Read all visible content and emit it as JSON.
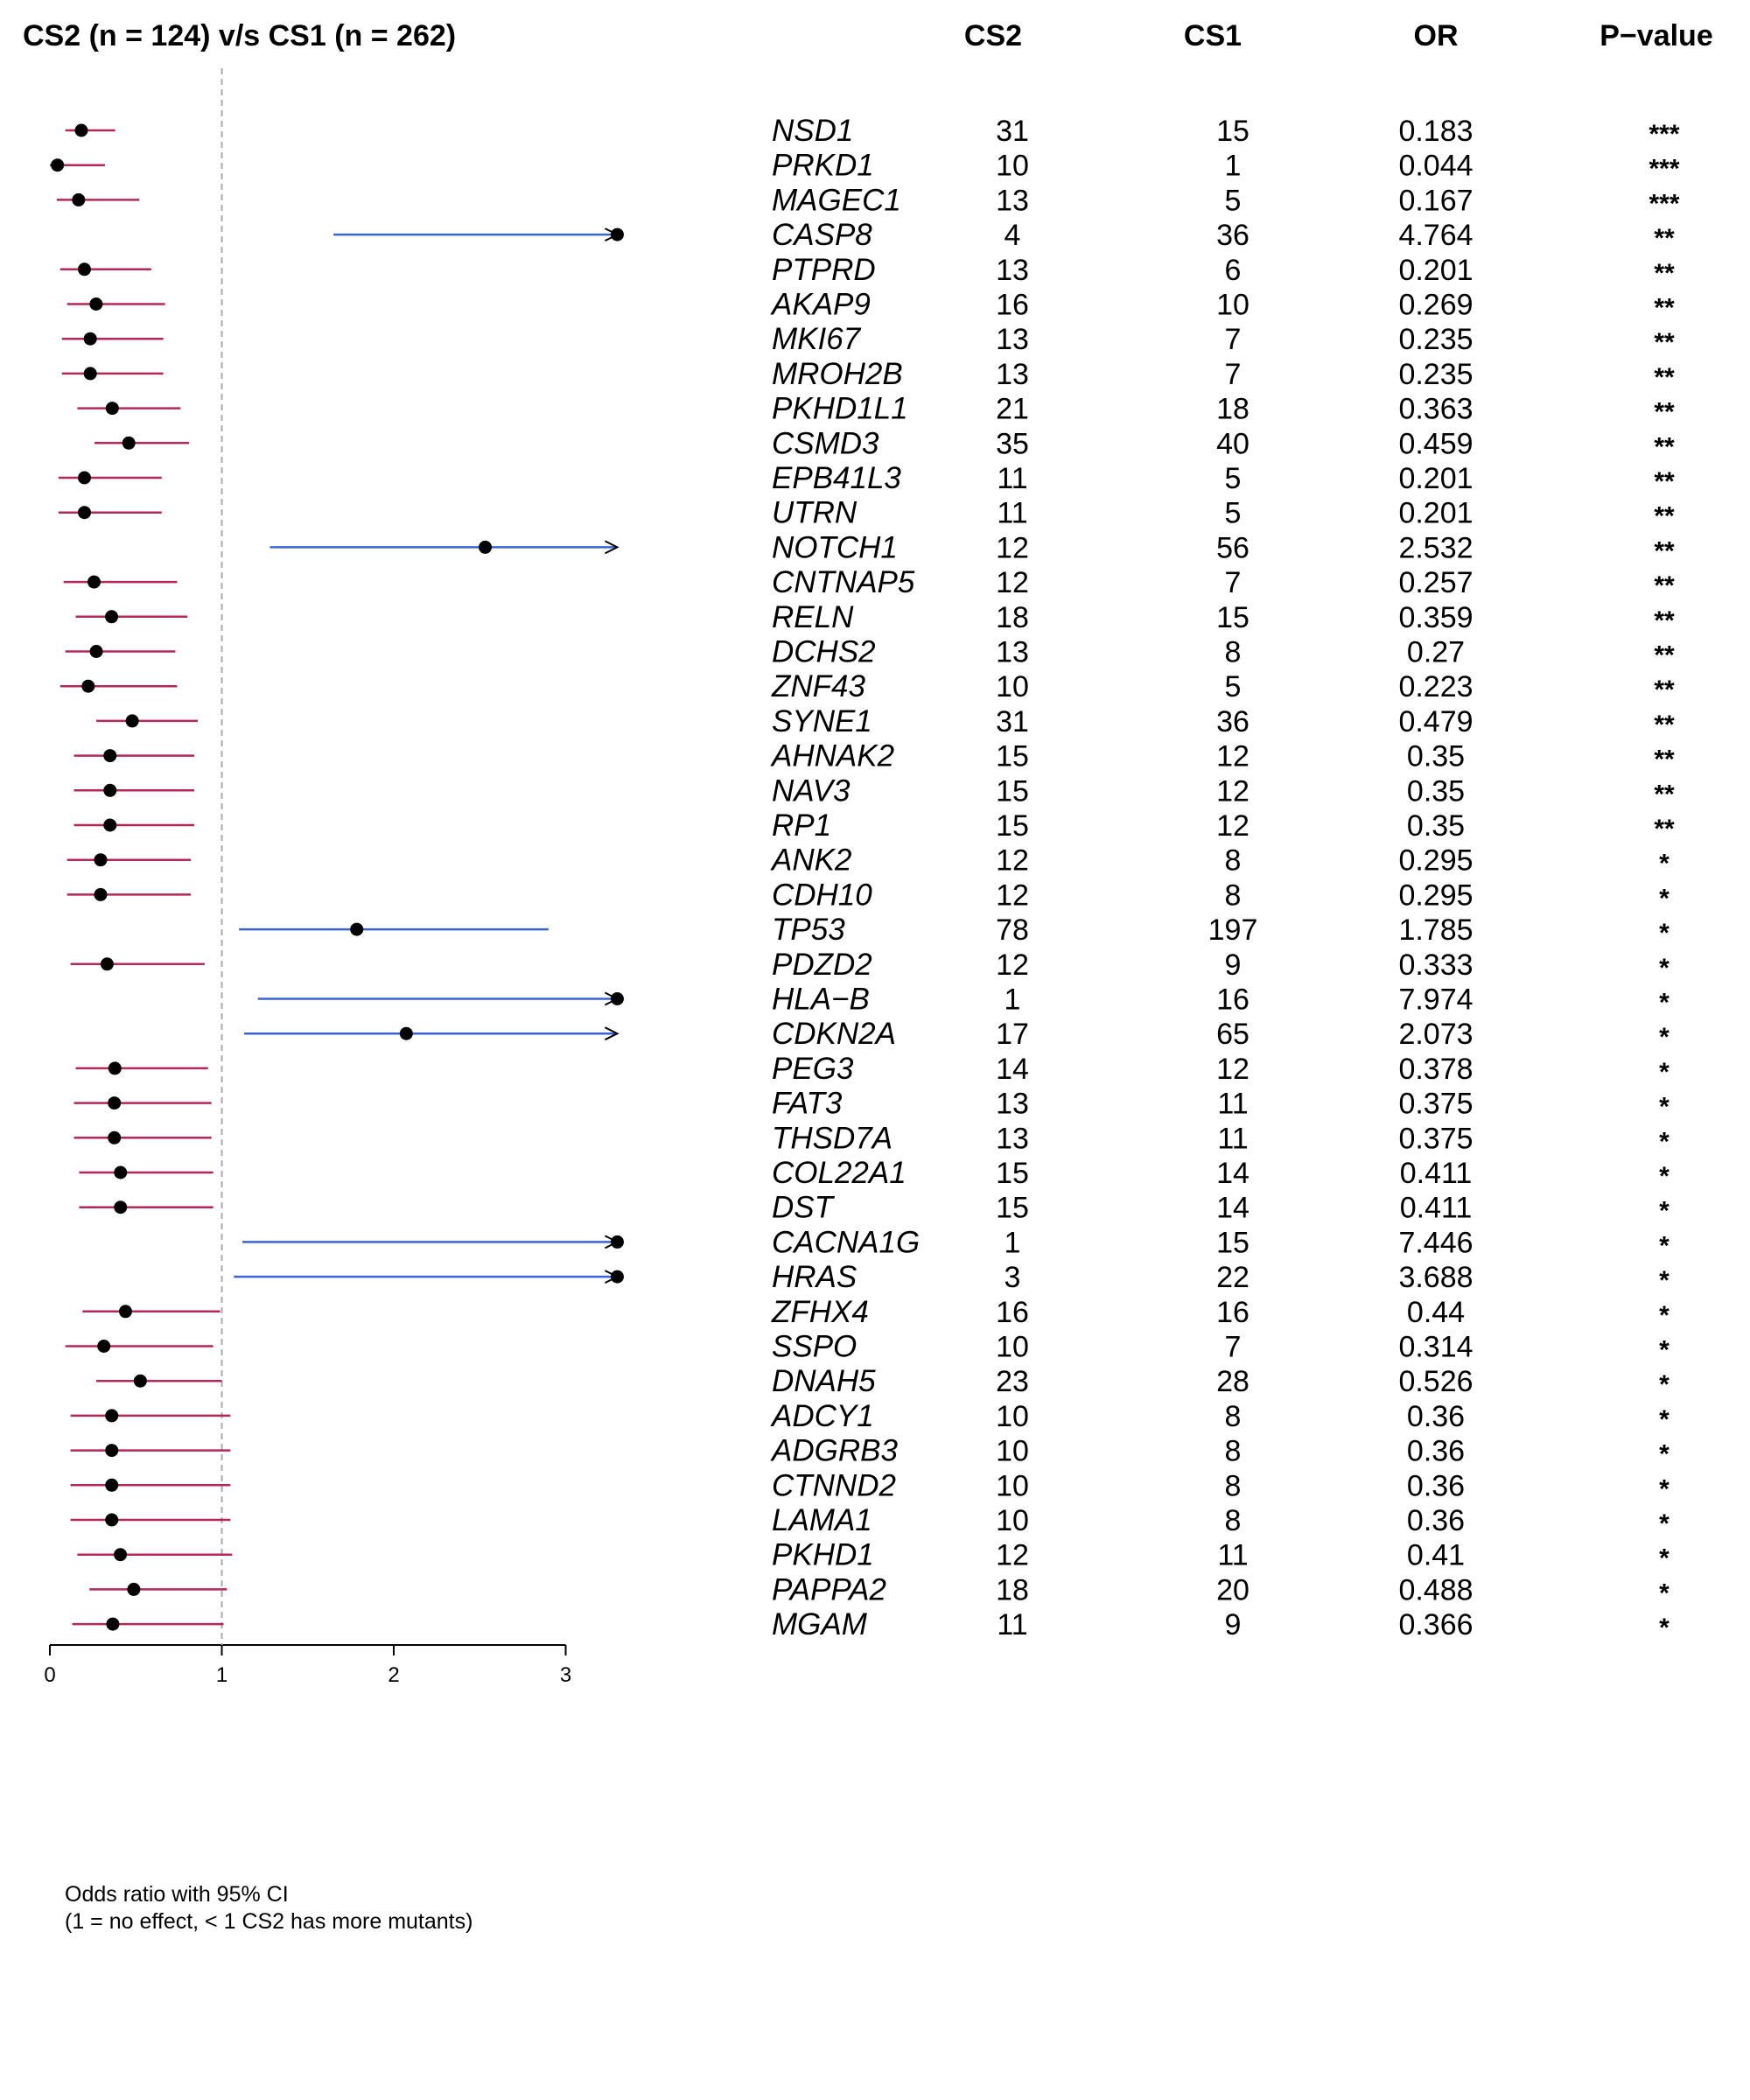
{
  "header": {
    "title": "CS2 (n = 124) v/s CS1 (n = 262)",
    "col_cs2": "CS2",
    "col_cs1": "CS1",
    "col_or": "OR",
    "col_pval": "P−value"
  },
  "footnote": {
    "line1": "Odds ratio with 95% CI",
    "line2": "(1 = no effect, < 1 CS2 has more mutants)"
  },
  "colors": {
    "below_one": "#b5265a",
    "above_one": "#3b63d6",
    "point": "#000000",
    "reference_line": "#aaaaaa"
  },
  "chart_data": {
    "type": "forest",
    "x_axis": {
      "range": [
        0,
        3
      ],
      "ticks": [
        0,
        1,
        2,
        3
      ],
      "reference_line": 1
    },
    "rows": [
      {
        "gene": "NSD1",
        "cs2": "31",
        "cs1": "15",
        "or": 0.183,
        "or_label": "0.183",
        "ci": [
          0.09,
          0.38
        ],
        "p": "***"
      },
      {
        "gene": "PRKD1",
        "cs2": "10",
        "cs1": "1",
        "or": 0.044,
        "or_label": "0.044",
        "ci": [
          0.0,
          0.32
        ],
        "p": "***"
      },
      {
        "gene": "MAGEC1",
        "cs2": "13",
        "cs1": "5",
        "or": 0.167,
        "or_label": "0.167",
        "ci": [
          0.04,
          0.52
        ],
        "p": "***"
      },
      {
        "gene": "CASP8",
        "cs2": "4",
        "cs1": "36",
        "or": 4.764,
        "or_label": "4.764",
        "ci": [
          1.65,
          3.3
        ],
        "p": "**",
        "clipped": true
      },
      {
        "gene": "PTPRD",
        "cs2": "13",
        "cs1": "6",
        "or": 0.201,
        "or_label": "0.201",
        "ci": [
          0.06,
          0.59
        ],
        "p": "**"
      },
      {
        "gene": "AKAP9",
        "cs2": "16",
        "cs1": "10",
        "or": 0.269,
        "or_label": "0.269",
        "ci": [
          0.1,
          0.67
        ],
        "p": "**"
      },
      {
        "gene": "MKI67",
        "cs2": "13",
        "cs1": "7",
        "or": 0.235,
        "or_label": "0.235",
        "ci": [
          0.07,
          0.66
        ],
        "p": "**"
      },
      {
        "gene": "MROH2B",
        "cs2": "13",
        "cs1": "7",
        "or": 0.235,
        "or_label": "0.235",
        "ci": [
          0.07,
          0.66
        ],
        "p": "**"
      },
      {
        "gene": "PKHD1L1",
        "cs2": "21",
        "cs1": "18",
        "or": 0.363,
        "or_label": "0.363",
        "ci": [
          0.16,
          0.76
        ],
        "p": "**"
      },
      {
        "gene": "CSMD3",
        "cs2": "35",
        "cs1": "40",
        "or": 0.459,
        "or_label": "0.459",
        "ci": [
          0.26,
          0.81
        ],
        "p": "**"
      },
      {
        "gene": "EPB41L3",
        "cs2": "11",
        "cs1": "5",
        "or": 0.201,
        "or_label": "0.201",
        "ci": [
          0.05,
          0.65
        ],
        "p": "**"
      },
      {
        "gene": "UTRN",
        "cs2": "11",
        "cs1": "5",
        "or": 0.201,
        "or_label": "0.201",
        "ci": [
          0.05,
          0.65
        ],
        "p": "**"
      },
      {
        "gene": "NOTCH1",
        "cs2": "12",
        "cs1": "56",
        "or": 2.532,
        "or_label": "2.532",
        "ci": [
          1.28,
          3.3
        ],
        "p": "**",
        "clipped": true
      },
      {
        "gene": "CNTNAP5",
        "cs2": "12",
        "cs1": "7",
        "or": 0.257,
        "or_label": "0.257",
        "ci": [
          0.08,
          0.74
        ],
        "p": "**"
      },
      {
        "gene": "RELN",
        "cs2": "18",
        "cs1": "15",
        "or": 0.359,
        "or_label": "0.359",
        "ci": [
          0.15,
          0.8
        ],
        "p": "**"
      },
      {
        "gene": "DCHS2",
        "cs2": "13",
        "cs1": "8",
        "or": 0.27,
        "or_label": "0.27",
        "ci": [
          0.09,
          0.73
        ],
        "p": "**"
      },
      {
        "gene": "ZNF43",
        "cs2": "10",
        "cs1": "5",
        "or": 0.223,
        "or_label": "0.223",
        "ci": [
          0.06,
          0.74
        ],
        "p": "**"
      },
      {
        "gene": "SYNE1",
        "cs2": "31",
        "cs1": "36",
        "or": 0.479,
        "or_label": "0.479",
        "ci": [
          0.27,
          0.86
        ],
        "p": "**"
      },
      {
        "gene": "AHNAK2",
        "cs2": "15",
        "cs1": "12",
        "or": 0.35,
        "or_label": "0.35",
        "ci": [
          0.14,
          0.84
        ],
        "p": "**"
      },
      {
        "gene": "NAV3",
        "cs2": "15",
        "cs1": "12",
        "or": 0.35,
        "or_label": "0.35",
        "ci": [
          0.14,
          0.84
        ],
        "p": "**"
      },
      {
        "gene": "RP1",
        "cs2": "15",
        "cs1": "12",
        "or": 0.35,
        "or_label": "0.35",
        "ci": [
          0.14,
          0.84
        ],
        "p": "**"
      },
      {
        "gene": "ANK2",
        "cs2": "12",
        "cs1": "8",
        "or": 0.295,
        "or_label": "0.295",
        "ci": [
          0.1,
          0.82
        ],
        "p": "*"
      },
      {
        "gene": "CDH10",
        "cs2": "12",
        "cs1": "8",
        "or": 0.295,
        "or_label": "0.295",
        "ci": [
          0.1,
          0.82
        ],
        "p": "*"
      },
      {
        "gene": "TP53",
        "cs2": "78",
        "cs1": "197",
        "or": 1.785,
        "or_label": "1.785",
        "ci": [
          1.1,
          2.9
        ],
        "p": "*"
      },
      {
        "gene": "PDZD2",
        "cs2": "12",
        "cs1": "9",
        "or": 0.333,
        "or_label": "0.333",
        "ci": [
          0.12,
          0.9
        ],
        "p": "*"
      },
      {
        "gene": "HLA−B",
        "cs2": "1",
        "cs1": "16",
        "or": 7.974,
        "or_label": "7.974",
        "ci": [
          1.21,
          3.3
        ],
        "p": "*",
        "clipped": true
      },
      {
        "gene": "CDKN2A",
        "cs2": "17",
        "cs1": "65",
        "or": 2.073,
        "or_label": "2.073",
        "ci": [
          1.13,
          3.3
        ],
        "p": "*",
        "clipped": true
      },
      {
        "gene": "PEG3",
        "cs2": "14",
        "cs1": "12",
        "or": 0.378,
        "or_label": "0.378",
        "ci": [
          0.15,
          0.92
        ],
        "p": "*"
      },
      {
        "gene": "FAT3",
        "cs2": "13",
        "cs1": "11",
        "or": 0.375,
        "or_label": "0.375",
        "ci": [
          0.14,
          0.94
        ],
        "p": "*"
      },
      {
        "gene": "THSD7A",
        "cs2": "13",
        "cs1": "11",
        "or": 0.375,
        "or_label": "0.375",
        "ci": [
          0.14,
          0.94
        ],
        "p": "*"
      },
      {
        "gene": "COL22A1",
        "cs2": "15",
        "cs1": "14",
        "or": 0.411,
        "or_label": "0.411",
        "ci": [
          0.17,
          0.95
        ],
        "p": "*"
      },
      {
        "gene": "DST",
        "cs2": "15",
        "cs1": "14",
        "or": 0.411,
        "or_label": "0.411",
        "ci": [
          0.17,
          0.95
        ],
        "p": "*"
      },
      {
        "gene": "CACNA1G",
        "cs2": "1",
        "cs1": "15",
        "or": 7.446,
        "or_label": "7.446",
        "ci": [
          1.12,
          3.3
        ],
        "p": "*",
        "clipped": true
      },
      {
        "gene": "HRAS",
        "cs2": "3",
        "cs1": "22",
        "or": 3.688,
        "or_label": "3.688",
        "ci": [
          1.07,
          3.3
        ],
        "p": "*",
        "clipped": true
      },
      {
        "gene": "ZFHX4",
        "cs2": "16",
        "cs1": "16",
        "or": 0.44,
        "or_label": "0.44",
        "ci": [
          0.19,
          0.99
        ],
        "p": "*"
      },
      {
        "gene": "SSPO",
        "cs2": "10",
        "cs1": "7",
        "or": 0.314,
        "or_label": "0.314",
        "ci": [
          0.09,
          0.95
        ],
        "p": "*"
      },
      {
        "gene": "DNAH5",
        "cs2": "23",
        "cs1": "28",
        "or": 0.526,
        "or_label": "0.526",
        "ci": [
          0.27,
          1.0
        ],
        "p": "*"
      },
      {
        "gene": "ADCY1",
        "cs2": "10",
        "cs1": "8",
        "or": 0.36,
        "or_label": "0.36",
        "ci": [
          0.12,
          1.05
        ],
        "p": "*"
      },
      {
        "gene": "ADGRB3",
        "cs2": "10",
        "cs1": "8",
        "or": 0.36,
        "or_label": "0.36",
        "ci": [
          0.12,
          1.05
        ],
        "p": "*"
      },
      {
        "gene": "CTNND2",
        "cs2": "10",
        "cs1": "8",
        "or": 0.36,
        "or_label": "0.36",
        "ci": [
          0.12,
          1.05
        ],
        "p": "*"
      },
      {
        "gene": "LAMA1",
        "cs2": "10",
        "cs1": "8",
        "or": 0.36,
        "or_label": "0.36",
        "ci": [
          0.12,
          1.05
        ],
        "p": "*"
      },
      {
        "gene": "PKHD1",
        "cs2": "12",
        "cs1": "11",
        "or": 0.41,
        "or_label": "0.41",
        "ci": [
          0.16,
          1.06
        ],
        "p": "*"
      },
      {
        "gene": "PAPPA2",
        "cs2": "18",
        "cs1": "20",
        "or": 0.488,
        "or_label": "0.488",
        "ci": [
          0.23,
          1.03
        ],
        "p": "*"
      },
      {
        "gene": "MGAM",
        "cs2": "11",
        "cs1": "9",
        "or": 0.366,
        "or_label": "0.366",
        "ci": [
          0.13,
          1.01
        ],
        "p": "*"
      }
    ]
  }
}
